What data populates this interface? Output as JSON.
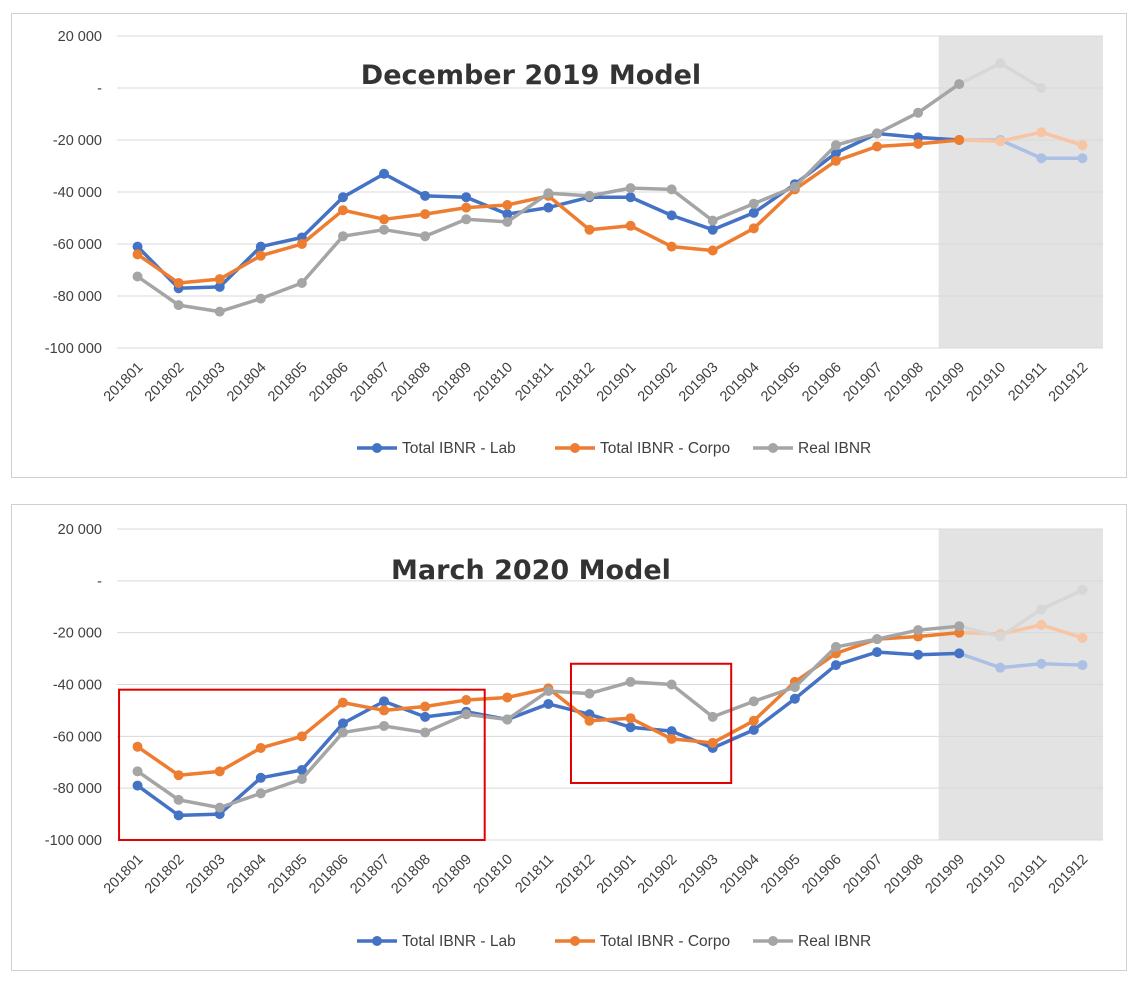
{
  "chart_data": [
    {
      "type": "line",
      "title": "December 2019 Model",
      "xlabel": "",
      "ylabel": "",
      "ylim": [
        -100000,
        20000
      ],
      "yticks": [
        20000,
        0,
        -20000,
        -40000,
        -60000,
        -80000,
        -100000
      ],
      "ytick_labels": [
        "20 000",
        "-",
        "-20 000",
        "-40 000",
        "-60 000",
        "-80 000",
        "-100 000"
      ],
      "grid": true,
      "legend_position": "bottom",
      "shaded_region": {
        "from": "201909",
        "to": "201912",
        "color": "#e3e3e3"
      },
      "x": [
        "201801",
        "201802",
        "201803",
        "201804",
        "201805",
        "201806",
        "201807",
        "201808",
        "201809",
        "201810",
        "201811",
        "201812",
        "201901",
        "201902",
        "201903",
        "201904",
        "201905",
        "201906",
        "201907",
        "201908",
        "201909",
        "201910",
        "201911",
        "201912"
      ],
      "series": [
        {
          "name": "Total IBNR - Lab",
          "color": "#4472c4",
          "values": [
            -61000,
            -77000,
            -76500,
            -61000,
            -57500,
            -42000,
            -33000,
            -41500,
            -42000,
            -48500,
            -46000,
            -42000,
            -42000,
            -49000,
            -54500,
            -48000,
            -37000,
            -25000,
            -17500,
            -19000,
            -20000,
            -20000,
            -27000,
            -27000
          ]
        },
        {
          "name": "Total IBNR - Corpo",
          "color": "#ed7d31",
          "values": [
            -64000,
            -75000,
            -73500,
            -64500,
            -60000,
            -47000,
            -50500,
            -48500,
            -46000,
            -45000,
            -41500,
            -54500,
            -53000,
            -61000,
            -62500,
            -54000,
            -39000,
            -28000,
            -22500,
            -21500,
            -20000,
            -20500,
            -17000,
            -22000
          ]
        },
        {
          "name": "Real IBNR",
          "color": "#a5a5a5",
          "values": [
            -72500,
            -83500,
            -86000,
            -81000,
            -75000,
            -57000,
            -54500,
            -57000,
            -50500,
            -51500,
            -40500,
            -41500,
            -38500,
            -39000,
            -51000,
            -44500,
            -38000,
            -22000,
            -17500,
            -9500,
            1500,
            9500,
            0,
            null
          ]
        }
      ]
    },
    {
      "type": "line",
      "title": "March 2020 Model",
      "xlabel": "",
      "ylabel": "",
      "ylim": [
        -100000,
        20000
      ],
      "yticks": [
        20000,
        0,
        -20000,
        -40000,
        -60000,
        -80000,
        -100000
      ],
      "ytick_labels": [
        "20 000",
        "-",
        "-20 000",
        "-40 000",
        "-60 000",
        "-80 000",
        "-100 000"
      ],
      "grid": true,
      "legend_position": "bottom",
      "shaded_region": {
        "from": "201909",
        "to": "201912",
        "color": "#e3e3e3"
      },
      "highlight_boxes": [
        {
          "from": "201801",
          "to": "201809",
          "ymin": -100000,
          "ymax": -42000,
          "color": "#e00000"
        },
        {
          "from": "201812",
          "to": "201903",
          "ymin": -78000,
          "ymax": -32000,
          "color": "#e00000"
        }
      ],
      "x": [
        "201801",
        "201802",
        "201803",
        "201804",
        "201805",
        "201806",
        "201807",
        "201808",
        "201809",
        "201810",
        "201811",
        "201812",
        "201901",
        "201902",
        "201903",
        "201904",
        "201905",
        "201906",
        "201907",
        "201908",
        "201909",
        "201910",
        "201911",
        "201912"
      ],
      "series": [
        {
          "name": "Total IBNR - Lab",
          "color": "#4472c4",
          "values": [
            -79000,
            -90500,
            -90000,
            -76000,
            -73000,
            -55000,
            -46500,
            -52500,
            -50500,
            -53500,
            -47500,
            -51500,
            -56500,
            -58000,
            -64500,
            -57500,
            -45500,
            -32500,
            -27500,
            -28500,
            -28000,
            -33500,
            -32000,
            -32500
          ]
        },
        {
          "name": "Total IBNR - Corpo",
          "color": "#ed7d31",
          "values": [
            -64000,
            -75000,
            -73500,
            -64500,
            -60000,
            -47000,
            -50000,
            -48500,
            -46000,
            -45000,
            -41500,
            -54000,
            -53000,
            -61000,
            -62500,
            -54000,
            -39000,
            -28000,
            -22500,
            -21500,
            -20000,
            -20500,
            -17000,
            -22000
          ]
        },
        {
          "name": "Real IBNR",
          "color": "#a5a5a5",
          "values": [
            -73500,
            -84500,
            -87500,
            -82000,
            -76500,
            -58500,
            -56000,
            -58500,
            -51500,
            -53500,
            -42500,
            -43500,
            -39000,
            -40000,
            -52500,
            -46500,
            -41000,
            -25500,
            -22500,
            -19000,
            -17500,
            -21500,
            -11000,
            -3500
          ]
        }
      ]
    }
  ]
}
